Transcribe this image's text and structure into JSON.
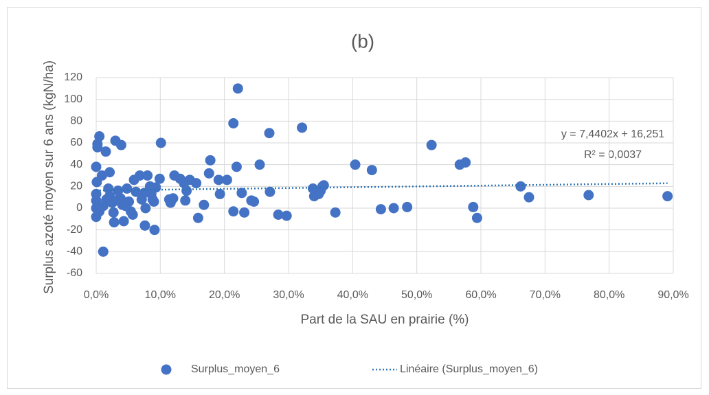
{
  "chart_data": {
    "type": "scatter",
    "title": "(b)",
    "x_label": "Part de la SAU en prairie (%)",
    "y_label": "Surplus azoté moyen sur 6 ans (kgN/ha)",
    "xlim": [
      0,
      90
    ],
    "ylim": [
      -60,
      120
    ],
    "xticks": [
      {
        "value": 0,
        "label": "0,0%"
      },
      {
        "value": 10,
        "label": "10,0%"
      },
      {
        "value": 20,
        "label": "20,0%"
      },
      {
        "value": 30,
        "label": "30,0%"
      },
      {
        "value": 40,
        "label": "40,0%"
      },
      {
        "value": 50,
        "label": "50,0%"
      },
      {
        "value": 60,
        "label": "60,0%"
      },
      {
        "value": 70,
        "label": "70,0%"
      },
      {
        "value": 80,
        "label": "80,0%"
      },
      {
        "value": 90,
        "label": "90,0%"
      }
    ],
    "yticks": [
      -60,
      -40,
      -20,
      0,
      20,
      40,
      60,
      80,
      100,
      120
    ],
    "grid": true,
    "legend": "bottom",
    "series": [
      {
        "name": "Surplus_moyen_6",
        "color": "#4472c4",
        "x": [
          0,
          0,
          0.2,
          0.2,
          0.5,
          0.1,
          0.9,
          1.5,
          1.1,
          2.1,
          3.0,
          3.9,
          0,
          0,
          0.2,
          0,
          0.5,
          1.1,
          1.6,
          1.9,
          2.1,
          2.5,
          2.7,
          2.8,
          3.2,
          3.4,
          3.8,
          4.1,
          4.3,
          4.6,
          4.8,
          5.1,
          5.4,
          5.7,
          5.9,
          6.2,
          6.8,
          7.1,
          7.5,
          7.6,
          7.7,
          8.0,
          8.4,
          8.6,
          8.8,
          9.0,
          9.1,
          9.3,
          9.9,
          10.1,
          11.4,
          11.6,
          12.0,
          12.2,
          13.1,
          13.7,
          13.9,
          14.1,
          14.6,
          15.9,
          15.6,
          16.8,
          17.6,
          17.8,
          19.1,
          19.3,
          20.4,
          21.4,
          21.4,
          22.1,
          21.9,
          22.7,
          23.1,
          24.2,
          24.6,
          25.5,
          27.0,
          27.1,
          28.4,
          29.7,
          32.1,
          33.8,
          34.0,
          34.7,
          35.0,
          35.3,
          35.5,
          37.3,
          40.4,
          43.0,
          44.4,
          46.4,
          48.5,
          52.3,
          56.7,
          57.6,
          58.8,
          59.4,
          66.2,
          67.5,
          76.8,
          89.1
        ],
        "values": [
          -8,
          38,
          56,
          59,
          66,
          24,
          30,
          52,
          -40,
          33,
          62,
          58,
          13,
          7,
          3,
          0,
          -3,
          2,
          8,
          18,
          11,
          5,
          -4,
          -13,
          7,
          16,
          9,
          3,
          -12,
          2,
          18,
          6,
          -3,
          -6,
          26,
          15,
          30,
          8,
          14,
          -16,
          0,
          30,
          20,
          13,
          8,
          6,
          -20,
          19,
          27,
          60,
          8,
          5,
          9,
          30,
          27,
          23,
          7,
          16,
          26,
          -9,
          23,
          3,
          32,
          44,
          26,
          13,
          26,
          -3,
          78,
          110,
          38,
          14,
          -4,
          7,
          6,
          40,
          69,
          15,
          -6,
          -7,
          74,
          18,
          11,
          13,
          16,
          20,
          21,
          -4,
          40,
          35,
          -1,
          0,
          1,
          58,
          40,
          42,
          1,
          -9,
          20,
          10,
          12,
          11
        ]
      }
    ],
    "trendline": {
      "name": "Linéaire (Surplus_moyen_6)",
      "color": "#2e75b6",
      "x": [
        0,
        89.1
      ],
      "values": [
        16.251,
        22.88
      ],
      "equation": "y = 7,4402x + 16,251",
      "r2": "R² = 0,0037"
    }
  }
}
